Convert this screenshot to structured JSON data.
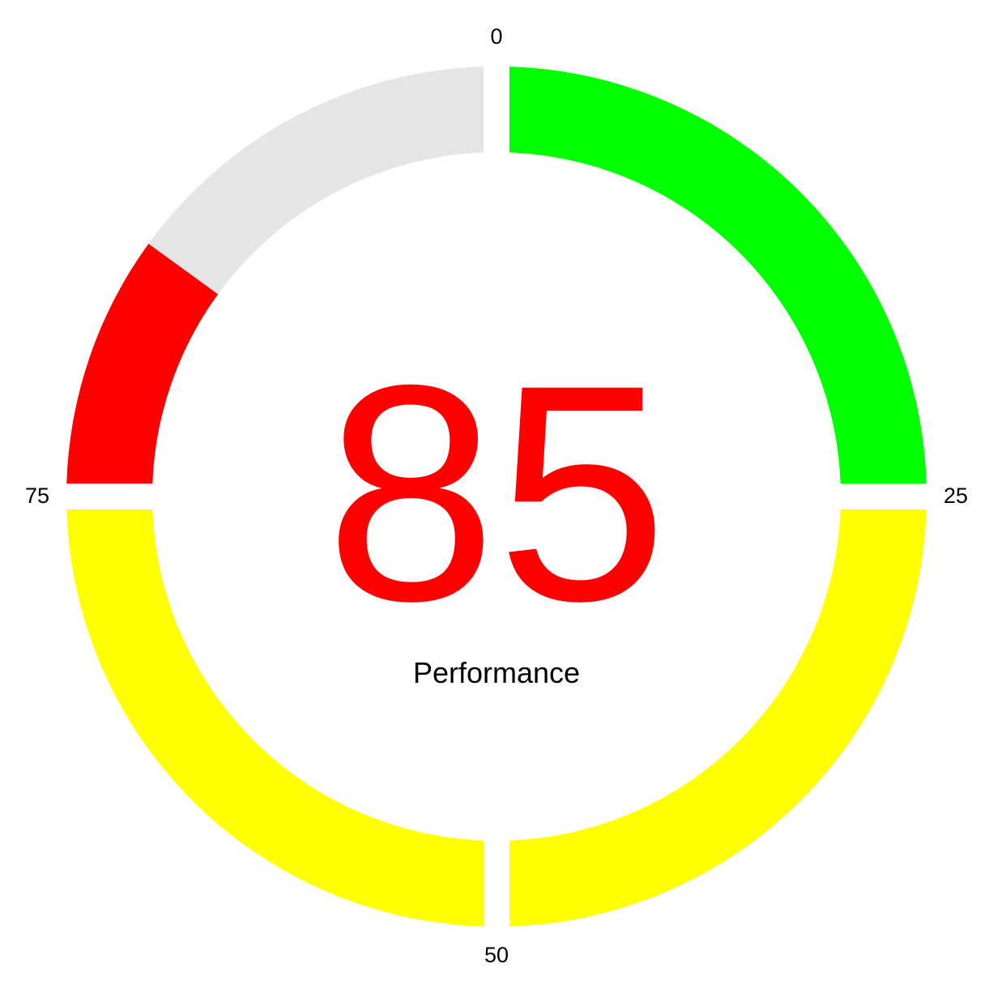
{
  "chart_data": {
    "type": "gauge",
    "value": 85,
    "value_color": "#ff0000",
    "label": "Performance",
    "scale": {
      "min": 0,
      "max": 100
    },
    "ticks": [
      "0",
      "25",
      "50",
      "75"
    ],
    "segments": [
      {
        "from": 0,
        "to": 25,
        "color": "#00ff00"
      },
      {
        "from": 25,
        "to": 50,
        "color": "#ffff00"
      },
      {
        "from": 50,
        "to": 75,
        "color": "#ffff00"
      },
      {
        "from": 75,
        "to": 85,
        "color": "#ff0000"
      },
      {
        "from": 85,
        "to": 100,
        "color": "#e5e5e5"
      }
    ]
  }
}
